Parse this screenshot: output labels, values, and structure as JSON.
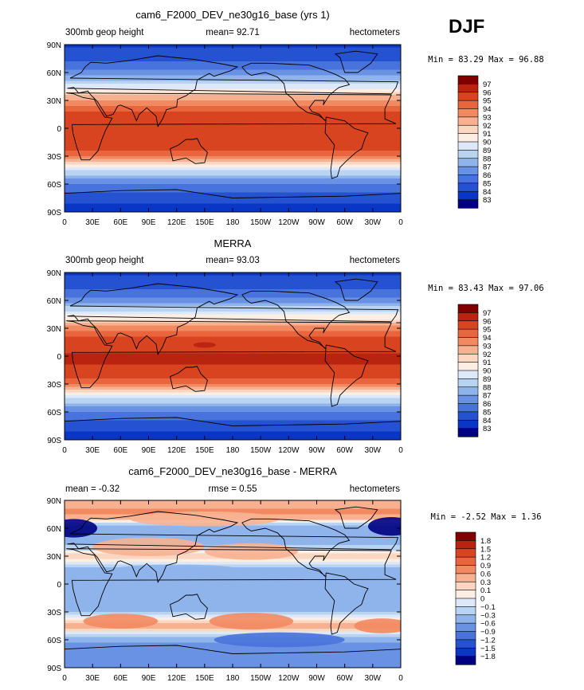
{
  "season": "DJF",
  "chart_data": [
    {
      "type": "heatmap",
      "title": "cam6_F2000_DEV_ne30g16_base (yrs 1)",
      "left_label": "300mb geop height",
      "center_label": "mean=  92.71",
      "right_label": "hectometers",
      "min_max": "Min =  83.29 Max =  96.88",
      "min": 83.29,
      "max": 96.88,
      "x_ticks": [
        "0",
        "30E",
        "60E",
        "90E",
        "120E",
        "150E",
        "180",
        "150W",
        "120W",
        "90W",
        "60W",
        "30W",
        "0"
      ],
      "y_ticks": [
        "90N",
        "60N",
        "30N",
        "0",
        "30S",
        "60S",
        "90S"
      ],
      "colorbar": {
        "labels": [
          "97",
          "96",
          "95",
          "94",
          "93",
          "92",
          "91",
          "90",
          "89",
          "88",
          "87",
          "86",
          "85",
          "84",
          "83"
        ],
        "colors": [
          "#800000",
          "#b82410",
          "#d94420",
          "#e8653e",
          "#f28a61",
          "#f7b191",
          "#fbd7c1",
          "#fdeee4",
          "#dde9f8",
          "#b9d3f3",
          "#8fb4ec",
          "#6a92e4",
          "#4872dc",
          "#2552d1",
          "#0a36c6",
          "#000080"
        ]
      },
      "zonal_profile": {
        "lat": [
          -90,
          -75,
          -60,
          -45,
          -30,
          -15,
          0,
          15,
          30,
          45,
          60,
          75,
          90
        ],
        "value": [
          84.0,
          84.8,
          86.2,
          89.5,
          94.8,
          96.2,
          96.4,
          96.0,
          93.8,
          90.0,
          86.8,
          85.2,
          84.2
        ]
      }
    },
    {
      "type": "heatmap",
      "title": "MERRA",
      "left_label": "300mb geop height",
      "center_label": "mean=  93.03",
      "right_label": "hectometers",
      "min_max": "Min =  83.43 Max =  97.06",
      "min": 83.43,
      "max": 97.06,
      "x_ticks": [
        "0",
        "30E",
        "60E",
        "90E",
        "120E",
        "150E",
        "180",
        "150W",
        "120W",
        "90W",
        "60W",
        "30W",
        "0"
      ],
      "y_ticks": [
        "90N",
        "60N",
        "30N",
        "0",
        "30S",
        "60S",
        "90S"
      ],
      "colorbar": {
        "labels": [
          "97",
          "96",
          "95",
          "94",
          "93",
          "92",
          "91",
          "90",
          "89",
          "88",
          "87",
          "86",
          "85",
          "84",
          "83"
        ],
        "colors": [
          "#800000",
          "#b82410",
          "#d94420",
          "#e8653e",
          "#f28a61",
          "#f7b191",
          "#fbd7c1",
          "#fdeee4",
          "#dde9f8",
          "#b9d3f3",
          "#8fb4ec",
          "#6a92e4",
          "#4872dc",
          "#2552d1",
          "#0a36c6",
          "#000080"
        ]
      },
      "zonal_profile": {
        "lat": [
          -90,
          -75,
          -60,
          -45,
          -30,
          -15,
          0,
          15,
          30,
          45,
          60,
          75,
          90
        ],
        "value": [
          84.0,
          84.9,
          86.4,
          89.8,
          95.0,
          96.4,
          96.6,
          96.2,
          94.0,
          90.2,
          87.0,
          85.3,
          84.3
        ]
      }
    },
    {
      "type": "heatmap",
      "title": "cam6_F2000_DEV_ne30g16_base - MERRA",
      "left_label": "mean =  -0.32",
      "center_label": "rmse =  0.55",
      "right_label": "hectometers",
      "min_max": "Min =  -2.52 Max =  1.36",
      "min": -2.52,
      "max": 1.36,
      "x_ticks": [
        "0",
        "30E",
        "60E",
        "90E",
        "120E",
        "150E",
        "180",
        "150W",
        "120W",
        "90W",
        "60W",
        "30W",
        "0"
      ],
      "y_ticks": [
        "90N",
        "60N",
        "30N",
        "0",
        "30S",
        "60S",
        "90S"
      ],
      "colorbar": {
        "labels": [
          "1.8",
          "1.5",
          "1.2",
          "0.9",
          "0.6",
          "0.3",
          "0.1",
          "0",
          "−0.1",
          "−0.3",
          "−0.6",
          "−0.9",
          "−1.2",
          "−1.5",
          "−1.8"
        ],
        "colors": [
          "#800000",
          "#b82410",
          "#d94420",
          "#e8653e",
          "#f28a61",
          "#f7b191",
          "#fbd7c1",
          "#fdeee4",
          "#dde9f8",
          "#b9d3f3",
          "#8fb4ec",
          "#6a92e4",
          "#4872dc",
          "#2552d1",
          "#0a36c6",
          "#000080"
        ]
      },
      "zonal_profile": {
        "lat": [
          -90,
          -75,
          -60,
          -45,
          -30,
          -15,
          0,
          15,
          30,
          45,
          60,
          75,
          90
        ],
        "value": [
          -0.6,
          -0.9,
          -0.5,
          0.4,
          -0.3,
          -0.4,
          -0.3,
          -0.4,
          0.2,
          -0.4,
          -0.6,
          0.7,
          0.5
        ]
      }
    }
  ]
}
